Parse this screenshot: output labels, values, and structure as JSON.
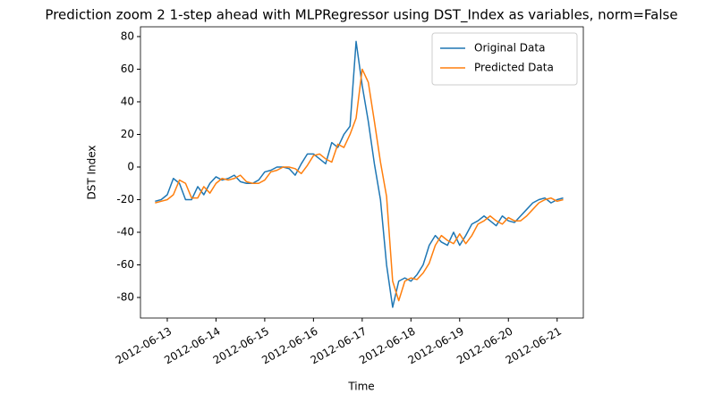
{
  "chart_data": {
    "type": "line",
    "title": "Prediction zoom 2 1-step ahead with MLPRegressor using DST_Index as variables, norm=False",
    "x_label": "Time",
    "y_label": "DST Index",
    "categories": [
      null,
      null,
      "2012-06-13",
      null,
      null,
      null,
      null,
      null,
      null,
      null,
      "2012-06-14",
      null,
      null,
      null,
      null,
      null,
      null,
      null,
      "2012-06-15",
      null,
      null,
      null,
      null,
      null,
      null,
      null,
      "2012-06-16",
      null,
      null,
      null,
      null,
      null,
      null,
      null,
      "2012-06-17",
      null,
      null,
      null,
      null,
      null,
      null,
      null,
      "2012-06-18",
      null,
      null,
      null,
      null,
      null,
      null,
      null,
      "2012-06-19",
      null,
      null,
      null,
      null,
      null,
      null,
      null,
      "2012-06-20",
      null,
      null,
      null,
      null,
      null,
      null,
      null,
      "2012-06-21",
      null
    ],
    "xlim": [
      -2.4,
      70.3
    ],
    "ylim": [
      -92.6,
      86
    ],
    "yticks": [
      -80,
      -60,
      -40,
      -20,
      0,
      20,
      40,
      60,
      80
    ],
    "legend": "upper right",
    "grid": false,
    "series": [
      {
        "name": "Original Data",
        "color": "#1f77b4",
        "values": [
          -21,
          -20,
          -17,
          -7,
          -10,
          -20,
          -20,
          -12,
          -17,
          -10,
          -6,
          -8,
          -7,
          -5,
          -9,
          -10,
          -10,
          -8,
          -3,
          -2,
          0,
          0,
          -1,
          -5,
          2,
          8,
          8,
          5,
          2,
          15,
          12,
          20,
          25,
          77,
          50,
          28,
          2,
          -20,
          -60,
          -86,
          -70,
          -68,
          -70,
          -66,
          -60,
          -48,
          -42,
          -46,
          -48,
          -40,
          -48,
          -42,
          -35,
          -33,
          -30,
          -33,
          -36,
          -30,
          -33,
          -34,
          -30,
          -26,
          -22,
          -20,
          -19,
          -22,
          -20,
          -19
        ]
      },
      {
        "name": "Predicted Data",
        "color": "#ff7f0e",
        "values": [
          -22,
          -21,
          -20,
          -17,
          -8,
          -10,
          -19,
          -19,
          -12,
          -16,
          -10,
          -7,
          -8,
          -7,
          -5,
          -9,
          -10,
          -10,
          -8,
          -3,
          -2,
          0,
          0,
          -1,
          -4,
          1,
          7,
          8,
          5,
          3,
          14,
          12,
          20,
          30,
          60,
          52,
          28,
          3,
          -18,
          -70,
          -82,
          -70,
          -68,
          -69,
          -65,
          -59,
          -48,
          -42,
          -45,
          -47,
          -41,
          -47,
          -42,
          -35,
          -33,
          -30,
          -33,
          -35,
          -31,
          -33,
          -33,
          -30,
          -26,
          -22,
          -20,
          -19,
          -21,
          -20
        ]
      }
    ]
  }
}
